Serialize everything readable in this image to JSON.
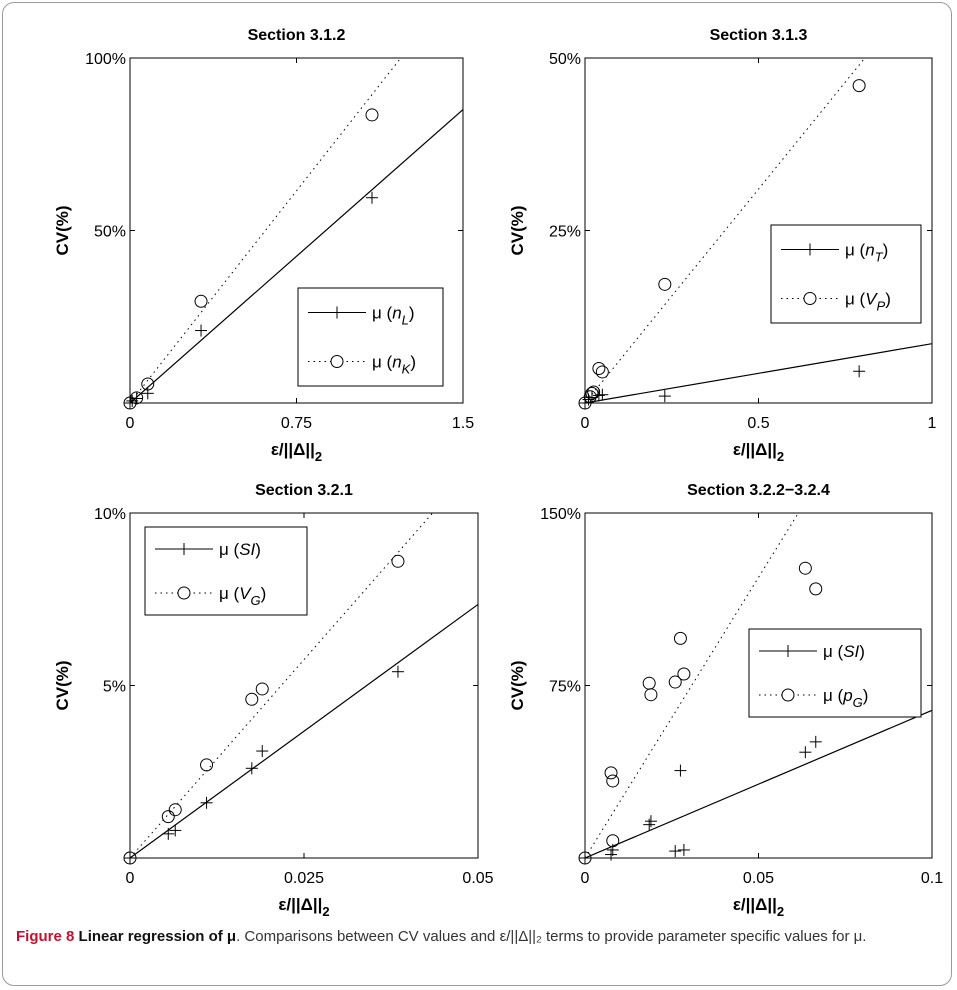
{
  "caption": {
    "label": "Figure 8",
    "title": "Linear regression of μ",
    "text": ". Comparisons between CV values and ε/||Δ||₂ terms to provide parameter specific values for μ."
  },
  "chart_data": [
    {
      "type": "scatter",
      "title": "Section 3.1.2",
      "xlabel": "ε/||Δ||",
      "xlabel_sub": "2",
      "ylabel": "CV(%)",
      "xlim": [
        0,
        1.5
      ],
      "ylim": [
        0,
        100
      ],
      "xticks": [
        0,
        0.75,
        1.5
      ],
      "xtick_labels": [
        "0",
        "0.75",
        "1.5"
      ],
      "yticks": [
        50,
        100
      ],
      "ytick_labels": [
        "50%",
        "100%"
      ],
      "legend_placement": "lower-right",
      "series": [
        {
          "prefix": "μ (",
          "var": "n",
          "sub": "L",
          "suffix": ")",
          "marker": "plus",
          "line": "solid",
          "line_coeffs": [
            0,
            56.7
          ],
          "points": [
            [
              0,
              0
            ],
            [
              0.01,
              0.6
            ],
            [
              0.03,
              1.3
            ],
            [
              0.08,
              2.8
            ],
            [
              0.32,
              21
            ],
            [
              1.09,
              59.5
            ]
          ]
        },
        {
          "prefix": "μ (",
          "var": "n",
          "sub": "K",
          "suffix": ")",
          "marker": "circle",
          "line": "dotted",
          "line_coeffs": [
            0,
            82
          ],
          "points": [
            [
              0,
              0
            ],
            [
              0.03,
              1.5
            ],
            [
              0.08,
              5.5
            ],
            [
              0.32,
              29.5
            ],
            [
              1.09,
              83.5
            ]
          ]
        }
      ]
    },
    {
      "type": "scatter",
      "title": "Section 3.1.3",
      "xlabel": "ε/||Δ||",
      "xlabel_sub": "2",
      "ylabel": "CV(%)",
      "xlim": [
        0,
        1
      ],
      "ylim": [
        0,
        50
      ],
      "xticks": [
        0,
        0.5,
        1
      ],
      "xtick_labels": [
        "0",
        "0.5",
        "1"
      ],
      "yticks": [
        25,
        50
      ],
      "ytick_labels": [
        "25%",
        "50%"
      ],
      "legend_placement": "center-right",
      "series": [
        {
          "prefix": "μ (",
          "var": "n",
          "sub": "T",
          "suffix": ")",
          "marker": "plus",
          "line": "solid",
          "line_coeffs": [
            0,
            8.6
          ],
          "points": [
            [
              0,
              0
            ],
            [
              0.01,
              0.5
            ],
            [
              0.02,
              0.8
            ],
            [
              0.04,
              1.1
            ],
            [
              0.05,
              1.2
            ],
            [
              0.23,
              1.0
            ],
            [
              0.79,
              4.6
            ]
          ]
        },
        {
          "prefix": "μ (",
          "var": "V",
          "sub": "P",
          "suffix": ")",
          "marker": "circle",
          "line": "dotted",
          "line_coeffs": [
            0,
            62
          ],
          "points": [
            [
              0,
              0
            ],
            [
              0.015,
              0.9
            ],
            [
              0.02,
              1.4
            ],
            [
              0.025,
              1.6
            ],
            [
              0.04,
              5.0
            ],
            [
              0.05,
              4.5
            ],
            [
              0.23,
              17.2
            ],
            [
              0.79,
              46
            ]
          ]
        }
      ]
    },
    {
      "type": "scatter",
      "title": "Section 3.2.1",
      "xlabel": "ε/||Δ||",
      "xlabel_sub": "2",
      "ylabel": "CV(%)",
      "xlim": [
        0,
        0.05
      ],
      "ylim": [
        0,
        10
      ],
      "xticks": [
        0,
        0.025,
        0.05
      ],
      "xtick_labels": [
        "0",
        "0.025",
        "0.05"
      ],
      "yticks": [
        5,
        10
      ],
      "ytick_labels": [
        "5%",
        "10%"
      ],
      "legend_placement": "upper-left",
      "series": [
        {
          "prefix": "μ (",
          "var": "SI",
          "sub": "",
          "suffix": ")",
          "marker": "plus",
          "line": "solid",
          "line_coeffs": [
            0,
            147
          ],
          "points": [
            [
              0,
              0
            ],
            [
              0.0055,
              0.7
            ],
            [
              0.0065,
              0.8
            ],
            [
              0.011,
              1.6
            ],
            [
              0.0175,
              2.6
            ],
            [
              0.019,
              3.1
            ],
            [
              0.0385,
              5.4
            ]
          ]
        },
        {
          "prefix": "μ (",
          "var": "V",
          "sub": "G",
          "suffix": ")",
          "marker": "circle",
          "line": "dotted",
          "line_coeffs": [
            0,
            230
          ],
          "points": [
            [
              0,
              0
            ],
            [
              0.0055,
              1.2
            ],
            [
              0.0065,
              1.4
            ],
            [
              0.011,
              2.7
            ],
            [
              0.0175,
              4.6
            ],
            [
              0.019,
              4.9
            ],
            [
              0.0385,
              8.6
            ]
          ]
        }
      ]
    },
    {
      "type": "scatter",
      "title": "Section 3.2.2−3.2.4",
      "xlabel": "ε/||Δ||",
      "xlabel_sub": "2",
      "ylabel": "CV(%)",
      "xlim": [
        0,
        0.1
      ],
      "ylim": [
        0,
        150
      ],
      "xticks": [
        0,
        0.05,
        0.1
      ],
      "xtick_labels": [
        "0",
        "0.05",
        "0.1"
      ],
      "yticks": [
        75,
        150
      ],
      "ytick_labels": [
        "75%",
        "150%"
      ],
      "legend_placement": "center-right",
      "series": [
        {
          "prefix": "μ (",
          "var": "SI",
          "sub": "",
          "suffix": ")",
          "marker": "plus",
          "line": "solid",
          "line_coeffs": [
            0,
            642
          ],
          "points": [
            [
              0,
              0
            ],
            [
              0.0075,
              1.5
            ],
            [
              0.008,
              3.5
            ],
            [
              0.0185,
              14.5
            ],
            [
              0.019,
              16
            ],
            [
              0.026,
              3
            ],
            [
              0.0275,
              38
            ],
            [
              0.0285,
              3.5
            ],
            [
              0.0635,
              46
            ],
            [
              0.0665,
              50.5
            ]
          ]
        },
        {
          "prefix": "μ (",
          "var": "p",
          "sub": "G",
          "suffix": ")",
          "marker": "circle",
          "line": "dotted",
          "line_coeffs": [
            0,
            2440
          ],
          "points": [
            [
              0,
              0
            ],
            [
              0.0075,
              37
            ],
            [
              0.008,
              33.5
            ],
            [
              0.008,
              7.5
            ],
            [
              0.0185,
              76
            ],
            [
              0.019,
              71
            ],
            [
              0.026,
              76.5
            ],
            [
              0.0275,
              95.5
            ],
            [
              0.0285,
              80
            ],
            [
              0.0635,
              126
            ],
            [
              0.0665,
              117
            ]
          ]
        }
      ]
    }
  ]
}
